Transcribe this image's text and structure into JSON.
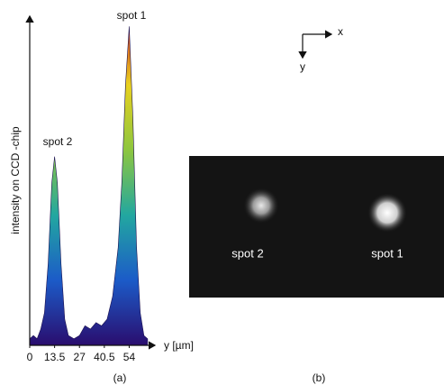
{
  "chart_data": {
    "type": "area",
    "panel_a": {
      "caption": "(a)",
      "y_axis_label": "intensity on CCD -chip",
      "x_axis_label": "y [µm]",
      "annotations": [
        "spot 1",
        "spot 2"
      ]
    },
    "x": [
      0,
      2,
      4,
      6,
      8,
      10,
      12,
      13.5,
      15,
      17,
      19,
      21,
      24,
      27,
      30,
      33,
      36,
      39,
      42,
      45,
      48,
      50,
      52,
      54,
      56,
      58,
      60,
      62,
      64
    ],
    "values": [
      0.02,
      0.03,
      0.02,
      0.05,
      0.1,
      0.25,
      0.5,
      0.58,
      0.5,
      0.25,
      0.08,
      0.03,
      0.02,
      0.03,
      0.06,
      0.05,
      0.07,
      0.06,
      0.08,
      0.15,
      0.3,
      0.5,
      0.8,
      0.98,
      0.7,
      0.3,
      0.1,
      0.03,
      0.02
    ],
    "colors": [
      "#2a0d6e",
      "#1c5bc8",
      "#22a7a0",
      "#8dc63f",
      "#e8d11f",
      "#d4261c"
    ],
    "xlim": [
      0,
      66
    ],
    "ylim": [
      0,
      1
    ],
    "xticks": [
      0,
      13.5,
      27,
      40.5,
      54
    ],
    "panel_b": {
      "caption": "(b)",
      "axis_x": "x",
      "axis_y": "y",
      "spot_labels": [
        "spot 2",
        "spot 1"
      ]
    }
  }
}
